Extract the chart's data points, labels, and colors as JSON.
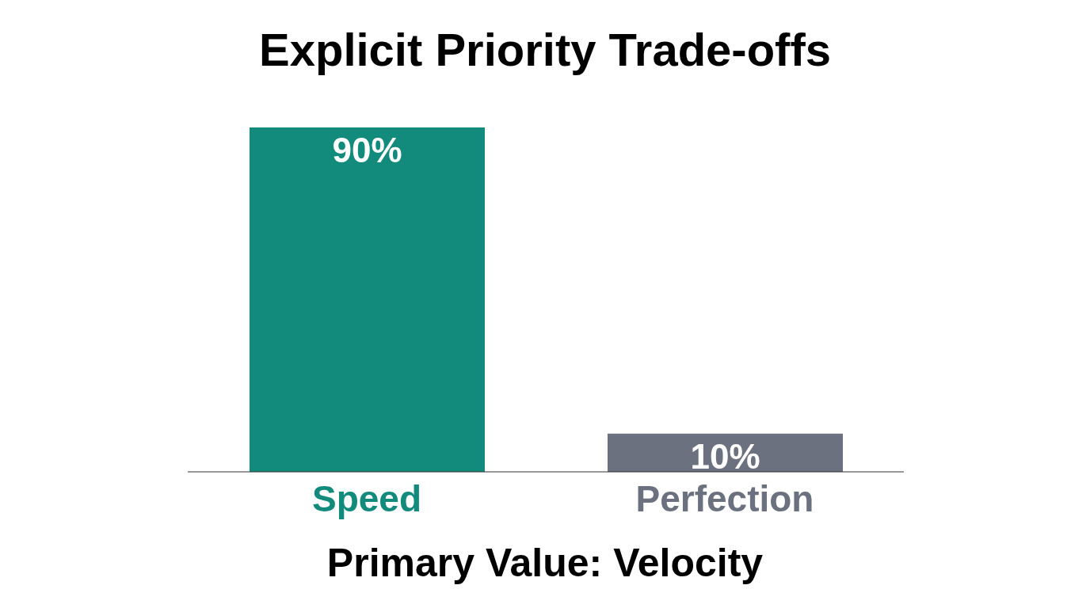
{
  "chart_data": {
    "type": "bar",
    "title": "Explicit Priority Trade-offs",
    "xlabel": "Primary Value: Velocity",
    "categories": [
      "Speed",
      "Perfection"
    ],
    "values": [
      90,
      10
    ],
    "colors": [
      "#128a7c",
      "#6b717f"
    ],
    "value_labels": [
      "90%",
      "10%"
    ],
    "grid": false,
    "legend": false
  }
}
